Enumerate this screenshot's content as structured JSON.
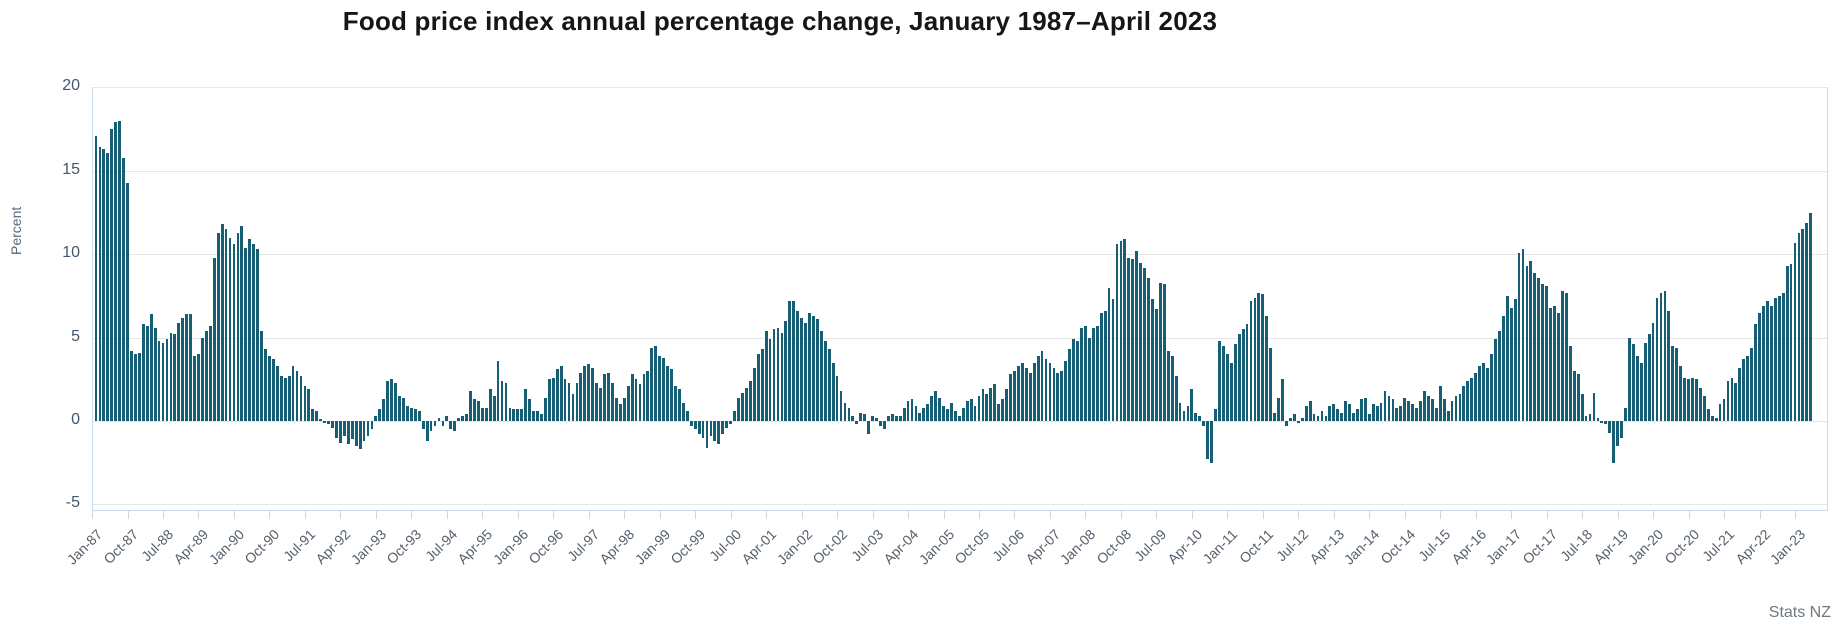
{
  "header": {
    "title": "Food price index annual percentage change, January 1987–April 2023"
  },
  "footer": {
    "credit": "Stats NZ"
  },
  "chart_data": {
    "type": "bar",
    "title": "Food price index annual percentage change, January 1987–April 2023",
    "xlabel": "",
    "ylabel": "Percent",
    "ylim": [
      -5,
      20
    ],
    "yticks": [
      20,
      15,
      10,
      5,
      0,
      -5
    ],
    "grid": true,
    "legend": "none",
    "bar_color": "#155e74",
    "x_start": "Jan-87",
    "x_end": "Apr-23",
    "x_tick_interval_months": 9,
    "x_tick_labels": [
      "Jan-87",
      "Oct-87",
      "Jul-88",
      "Apr-89",
      "Jan-90",
      "Oct-90",
      "Jul-91",
      "Apr-92",
      "Jan-93",
      "Oct-93",
      "Jul-94",
      "Apr-95",
      "Jan-96",
      "Oct-96",
      "Jul-97",
      "Apr-98",
      "Jan-99",
      "Oct-99",
      "Jul-00",
      "Apr-01",
      "Jan-02",
      "Oct-02",
      "Jul-03",
      "Apr-04",
      "Jan-05",
      "Oct-05",
      "Jul-06",
      "Apr-07",
      "Jan-08",
      "Oct-08",
      "Jul-09",
      "Apr-10",
      "Jan-11",
      "Oct-11",
      "Jul-12",
      "Apr-13",
      "Jan-14",
      "Oct-14",
      "Jul-15",
      "Apr-16",
      "Jan-17",
      "Oct-17",
      "Jul-18",
      "Apr-19",
      "Jan-20",
      "Oct-20",
      "Jul-21",
      "Apr-22",
      "Jan-23"
    ],
    "series": [
      {
        "name": "Food price index annual percentage change",
        "start_month": "1987-01",
        "end_month": "2023-04",
        "values": [
          17.1,
          16.4,
          16.3,
          16.1,
          17.5,
          17.9,
          18.0,
          15.8,
          14.3,
          4.2,
          4.0,
          4.1,
          5.8,
          5.7,
          6.4,
          5.6,
          4.8,
          4.7,
          4.9,
          5.3,
          5.2,
          5.9,
          6.2,
          6.4,
          6.4,
          3.9,
          4.0,
          5.0,
          5.4,
          5.7,
          9.8,
          11.3,
          11.8,
          11.5,
          11.0,
          10.6,
          11.3,
          11.7,
          10.4,
          10.9,
          10.6,
          10.3,
          5.4,
          4.3,
          3.9,
          3.7,
          3.3,
          2.7,
          2.6,
          2.7,
          3.3,
          3.0,
          2.7,
          2.1,
          1.9,
          0.7,
          0.6,
          0.1,
          -0.1,
          -0.2,
          -0.4,
          -1.0,
          -1.3,
          -0.9,
          -1.4,
          -1.1,
          -1.5,
          -1.7,
          -1.2,
          -0.9,
          -0.5,
          0.3,
          0.7,
          1.3,
          2.4,
          2.5,
          2.3,
          1.5,
          1.4,
          0.9,
          0.8,
          0.7,
          0.6,
          -0.5,
          -1.2,
          -0.6,
          -0.3,
          0.2,
          -0.3,
          0.3,
          -0.5,
          -0.6,
          0.2,
          0.3,
          0.4,
          1.8,
          1.3,
          1.2,
          0.8,
          0.8,
          1.9,
          1.5,
          3.6,
          2.4,
          2.3,
          0.8,
          0.7,
          0.7,
          0.7,
          1.9,
          1.3,
          0.6,
          0.6,
          0.4,
          1.4,
          2.5,
          2.6,
          3.1,
          3.3,
          2.5,
          2.3,
          1.6,
          2.3,
          2.9,
          3.3,
          3.4,
          3.2,
          2.3,
          2.0,
          2.8,
          2.9,
          2.3,
          1.4,
          1.0,
          1.4,
          2.1,
          2.8,
          2.5,
          2.2,
          2.8,
          3.0,
          4.4,
          4.5,
          3.9,
          3.8,
          3.3,
          3.1,
          2.1,
          1.9,
          1.1,
          0.6,
          -0.3,
          -0.5,
          -0.8,
          -1.0,
          -1.6,
          -0.9,
          -1.2,
          -1.4,
          -0.8,
          -0.4,
          -0.2,
          0.6,
          1.4,
          1.7,
          2.0,
          2.4,
          3.2,
          4.0,
          4.3,
          5.4,
          4.9,
          5.5,
          5.6,
          5.3,
          6.0,
          7.2,
          7.2,
          6.6,
          6.2,
          5.9,
          6.5,
          6.3,
          6.1,
          5.4,
          4.8,
          4.3,
          3.5,
          2.7,
          1.8,
          1.1,
          0.8,
          0.3,
          -0.2,
          0.5,
          0.4,
          -0.8,
          0.3,
          0.2,
          -0.3,
          -0.5,
          0.3,
          0.4,
          0.3,
          0.3,
          0.8,
          1.2,
          1.3,
          0.9,
          0.5,
          0.8,
          1.0,
          1.5,
          1.8,
          1.4,
          0.9,
          0.7,
          1.1,
          0.6,
          0.3,
          0.8,
          1.2,
          1.3,
          0.9,
          1.5,
          1.9,
          1.6,
          2.0,
          2.2,
          1.0,
          1.3,
          1.9,
          2.8,
          3.0,
          3.3,
          3.5,
          3.2,
          2.9,
          3.5,
          3.9,
          4.2,
          3.7,
          3.5,
          3.2,
          2.9,
          3.0,
          3.6,
          4.3,
          4.9,
          4.8,
          5.6,
          5.7,
          5.0,
          5.6,
          5.7,
          6.5,
          6.6,
          8.0,
          7.3,
          10.6,
          10.8,
          10.9,
          9.8,
          9.7,
          10.2,
          9.5,
          9.2,
          8.6,
          7.3,
          6.7,
          8.3,
          8.2,
          4.2,
          3.9,
          2.7,
          1.1,
          0.6,
          0.9,
          1.9,
          0.5,
          0.3,
          -0.3,
          -2.3,
          -2.5,
          0.7,
          4.8,
          4.5,
          4.0,
          3.5,
          4.6,
          5.2,
          5.5,
          5.8,
          7.2,
          7.4,
          7.7,
          7.6,
          6.3,
          4.4,
          0.5,
          1.4,
          2.5,
          -0.3,
          0.2,
          0.4,
          -0.1,
          0.2,
          0.9,
          1.2,
          0.4,
          0.3,
          0.6,
          0.3,
          0.9,
          1.0,
          0.7,
          0.5,
          1.2,
          1.0,
          0.5,
          0.7,
          1.3,
          1.4,
          0.4,
          1.0,
          0.9,
          1.1,
          1.8,
          1.5,
          1.3,
          0.8,
          0.9,
          1.4,
          1.2,
          1.0,
          0.8,
          1.2,
          1.8,
          1.5,
          1.3,
          0.8,
          2.1,
          1.3,
          0.6,
          1.2,
          1.5,
          1.6,
          2.1,
          2.4,
          2.6,
          2.9,
          3.3,
          3.5,
          3.2,
          4.0,
          4.9,
          5.4,
          6.3,
          7.5,
          6.8,
          7.3,
          10.1,
          10.3,
          9.3,
          9.6,
          8.9,
          8.6,
          8.2,
          8.1,
          6.8,
          6.9,
          6.5,
          7.8,
          7.7,
          4.5,
          3.0,
          2.8,
          1.6,
          0.3,
          0.4,
          1.7,
          0.2,
          -0.1,
          -0.2,
          -0.7,
          -2.5,
          -1.5,
          -1.0,
          0.8,
          5.0,
          4.6,
          3.9,
          3.5,
          4.7,
          5.2,
          5.9,
          7.4,
          7.7,
          7.8,
          6.6,
          4.5,
          4.4,
          3.3,
          2.6,
          2.5,
          2.6,
          2.5,
          2.0,
          1.5,
          0.7,
          0.3,
          0.2,
          1.0,
          1.3,
          2.4,
          2.6,
          2.3,
          3.2,
          3.7,
          3.9,
          4.4,
          5.8,
          6.5,
          6.9,
          7.2,
          6.9,
          7.4,
          7.5,
          7.7,
          9.3,
          9.4,
          10.7,
          11.3,
          11.5,
          11.9,
          12.5
        ]
      }
    ]
  }
}
